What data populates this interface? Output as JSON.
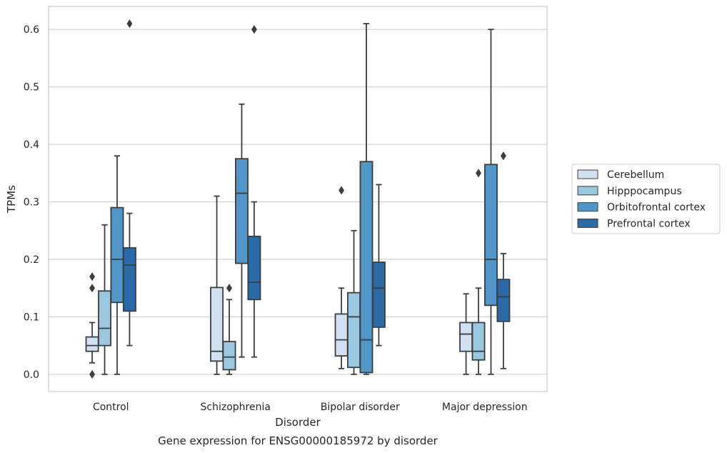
{
  "chart_data": {
    "type": "boxplot",
    "title": "",
    "caption": "Gene expression for ENSG00000185972 by disorder",
    "xlabel": "Disorder",
    "ylabel": "TPMs",
    "ylim": [
      -0.03,
      0.64
    ],
    "yticks": [
      0.0,
      0.1,
      0.2,
      0.3,
      0.4,
      0.5,
      0.6
    ],
    "ytick_labels": [
      "0.0",
      "0.1",
      "0.2",
      "0.3",
      "0.4",
      "0.5",
      "0.6"
    ],
    "grid": "horizontal",
    "legend_position": "right",
    "categories": [
      "Control",
      "Schizophrenia",
      "Bipolar disorder",
      "Major depression"
    ],
    "series": [
      {
        "name": "Cerebellum",
        "color": "#d0e1f2",
        "boxes": [
          {
            "q1": 0.04,
            "median": 0.05,
            "q3": 0.065,
            "whisker_low": 0.02,
            "whisker_high": 0.09,
            "outliers": [
              0.0,
              0.15,
              0.17
            ]
          },
          {
            "q1": 0.023,
            "median": 0.04,
            "q3": 0.151,
            "whisker_low": 0.0,
            "whisker_high": 0.31,
            "outliers": []
          },
          {
            "q1": 0.032,
            "median": 0.06,
            "q3": 0.105,
            "whisker_low": 0.01,
            "whisker_high": 0.15,
            "outliers": [
              0.32
            ]
          },
          {
            "q1": 0.04,
            "median": 0.07,
            "q3": 0.09,
            "whisker_low": 0.0,
            "whisker_high": 0.14,
            "outliers": []
          }
        ]
      },
      {
        "name": "Hipppocampus",
        "color": "#9ac8e0",
        "boxes": [
          {
            "q1": 0.05,
            "median": 0.08,
            "q3": 0.145,
            "whisker_low": 0.0,
            "whisker_high": 0.26,
            "outliers": []
          },
          {
            "q1": 0.008,
            "median": 0.03,
            "q3": 0.057,
            "whisker_low": 0.0,
            "whisker_high": 0.13,
            "outliers": [
              0.15
            ]
          },
          {
            "q1": 0.012,
            "median": 0.1,
            "q3": 0.142,
            "whisker_low": 0.0,
            "whisker_high": 0.25,
            "outliers": []
          },
          {
            "q1": 0.025,
            "median": 0.04,
            "q3": 0.09,
            "whisker_low": 0.0,
            "whisker_high": 0.15,
            "outliers": [
              0.35
            ]
          }
        ]
      },
      {
        "name": "Orbitofrontal cortex",
        "color": "#5096c8",
        "boxes": [
          {
            "q1": 0.125,
            "median": 0.2,
            "q3": 0.29,
            "whisker_low": 0.0,
            "whisker_high": 0.38,
            "outliers": []
          },
          {
            "q1": 0.193,
            "median": 0.315,
            "q3": 0.375,
            "whisker_low": 0.03,
            "whisker_high": 0.47,
            "outliers": []
          },
          {
            "q1": 0.003,
            "median": 0.06,
            "q3": 0.37,
            "whisker_low": 0.0,
            "whisker_high": 0.61,
            "outliers": []
          },
          {
            "q1": 0.12,
            "median": 0.2,
            "q3": 0.365,
            "whisker_low": 0.0,
            "whisker_high": 0.6,
            "outliers": []
          }
        ]
      },
      {
        "name": "Prefrontal cortex",
        "color": "#2a6aa6",
        "boxes": [
          {
            "q1": 0.11,
            "median": 0.19,
            "q3": 0.22,
            "whisker_low": 0.05,
            "whisker_high": 0.28,
            "outliers": [
              0.61
            ]
          },
          {
            "q1": 0.13,
            "median": 0.16,
            "q3": 0.24,
            "whisker_low": 0.03,
            "whisker_high": 0.3,
            "outliers": [
              0.6
            ]
          },
          {
            "q1": 0.082,
            "median": 0.15,
            "q3": 0.195,
            "whisker_low": 0.05,
            "whisker_high": 0.33,
            "outliers": []
          },
          {
            "q1": 0.092,
            "median": 0.135,
            "q3": 0.165,
            "whisker_low": 0.01,
            "whisker_high": 0.21,
            "outliers": [
              0.38
            ]
          }
        ]
      }
    ]
  }
}
